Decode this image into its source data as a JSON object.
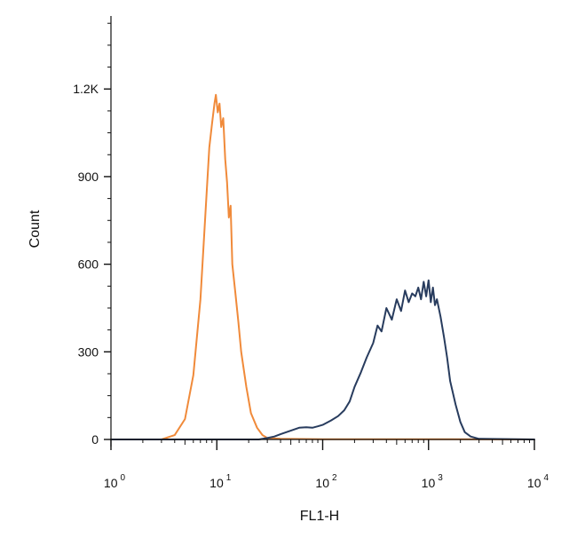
{
  "chart_data": {
    "type": "line",
    "xlabel": "FL1-H",
    "ylabel": "Count",
    "x_scale": "log",
    "xlim": [
      1,
      10000
    ],
    "ylim": [
      0,
      1450
    ],
    "x_ticks": [
      {
        "base": "10",
        "exp": "0",
        "value": 1
      },
      {
        "base": "10",
        "exp": "1",
        "value": 10
      },
      {
        "base": "10",
        "exp": "2",
        "value": 100
      },
      {
        "base": "10",
        "exp": "3",
        "value": 1000
      },
      {
        "base": "10",
        "exp": "4",
        "value": 10000
      }
    ],
    "y_ticks": [
      {
        "label": "0",
        "value": 0
      },
      {
        "label": "300",
        "value": 300
      },
      {
        "label": "600",
        "value": 600
      },
      {
        "label": "900",
        "value": 900
      },
      {
        "label": "1.2K",
        "value": 1200
      }
    ],
    "grid": false,
    "series": [
      {
        "color": "#f08a3a",
        "x": [
          1,
          3,
          4,
          5,
          6,
          7,
          8,
          8.5,
          9,
          9.5,
          9.8,
          10.2,
          10.6,
          11,
          11.5,
          12,
          12.5,
          13,
          13.5,
          14,
          15,
          16,
          17,
          19,
          21,
          24,
          27,
          30,
          40,
          100,
          1000,
          10000
        ],
        "y": [
          0,
          0,
          15,
          70,
          220,
          480,
          840,
          1000,
          1080,
          1150,
          1180,
          1120,
          1150,
          1070,
          1100,
          960,
          880,
          760,
          800,
          600,
          500,
          400,
          300,
          180,
          90,
          40,
          15,
          5,
          2,
          1,
          1,
          0
        ]
      },
      {
        "color": "#283c5e",
        "x": [
          1,
          25,
          30,
          35,
          40,
          50,
          60,
          70,
          80,
          90,
          100,
          120,
          140,
          160,
          180,
          200,
          230,
          260,
          300,
          330,
          360,
          400,
          450,
          500,
          550,
          600,
          650,
          700,
          750,
          800,
          850,
          900,
          950,
          1000,
          1050,
          1100,
          1150,
          1200,
          1300,
          1400,
          1500,
          1600,
          1800,
          2000,
          2200,
          2500,
          3000,
          10000
        ],
        "y": [
          0,
          0,
          5,
          10,
          18,
          30,
          40,
          42,
          40,
          45,
          50,
          65,
          80,
          100,
          130,
          180,
          230,
          280,
          330,
          390,
          370,
          450,
          410,
          480,
          440,
          510,
          470,
          500,
          490,
          520,
          480,
          540,
          490,
          545,
          470,
          520,
          460,
          480,
          420,
          350,
          280,
          200,
          120,
          60,
          25,
          10,
          2,
          0
        ]
      }
    ]
  }
}
